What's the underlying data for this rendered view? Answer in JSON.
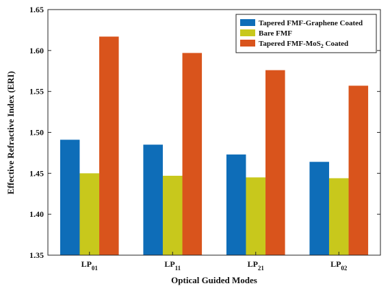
{
  "chart_data": {
    "type": "bar",
    "title": "",
    "xlabel": "Optical Guided Modes",
    "ylabel": "Effective Refractive Index (ERI)",
    "ylim": [
      1.35,
      1.65
    ],
    "yticks": [
      "1.35",
      "1.40",
      "1.45",
      "1.50",
      "1.55",
      "1.60",
      "1.65"
    ],
    "yticks_values": [
      1.35,
      1.4,
      1.45,
      1.5,
      1.55,
      1.6,
      1.65
    ],
    "categories": [
      {
        "base": "LP",
        "sub": "01"
      },
      {
        "base": "LP",
        "sub": "11"
      },
      {
        "base": "LP",
        "sub": "21"
      },
      {
        "base": "LP",
        "sub": "02"
      }
    ],
    "legend_position": "top-right",
    "grid": false,
    "series": [
      {
        "name": "Tapered FMF-Graphene Coated",
        "color": "#0e6db8",
        "values": [
          1.491,
          1.485,
          1.473,
          1.464
        ]
      },
      {
        "name": "Bare FMF",
        "color": "#c8c81c",
        "values": [
          1.45,
          1.447,
          1.445,
          1.444
        ]
      },
      {
        "name": "Tapered FMF-MoS",
        "name_sub": "2",
        "name_tail": " Coated",
        "color": "#d9541c",
        "values": [
          1.617,
          1.597,
          1.576,
          1.557
        ]
      }
    ]
  }
}
